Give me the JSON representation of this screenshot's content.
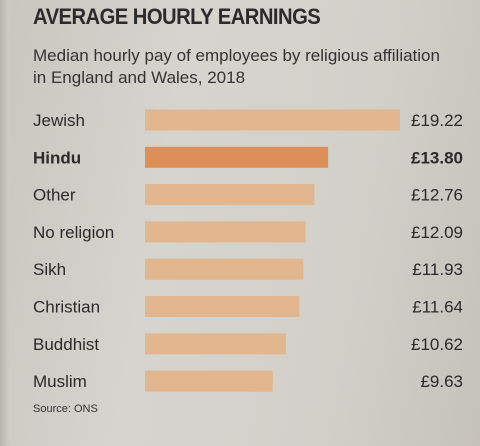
{
  "title": "AVERAGE HOURLY EARNINGS",
  "subtitle": "Median hourly pay of employees by religious affiliation in England and Wales, 2018",
  "source": "Source: ONS",
  "colors": {
    "bar": "#e2b68e",
    "highlight": "#de8e58",
    "text": "#2a2a2a"
  },
  "chart_data": {
    "type": "bar",
    "orientation": "horizontal",
    "title": "AVERAGE HOURLY EARNINGS",
    "subtitle": "Median hourly pay of employees by religious affiliation in England and Wales, 2018",
    "categories": [
      "Jewish",
      "Hindu",
      "Other",
      "No religion",
      "Sikh",
      "Christian",
      "Buddhist",
      "Muslim"
    ],
    "values": [
      19.22,
      13.8,
      12.76,
      12.09,
      11.93,
      11.64,
      10.62,
      9.63
    ],
    "value_labels": [
      "£19.22",
      "£13.80",
      "£12.76",
      "£12.09",
      "£11.93",
      "£11.64",
      "£10.62",
      "£9.63"
    ],
    "highlight": "Hindu",
    "xlabel": "",
    "ylabel": "",
    "xlim": [
      0,
      19.22
    ],
    "grid": false,
    "legend": "none"
  }
}
